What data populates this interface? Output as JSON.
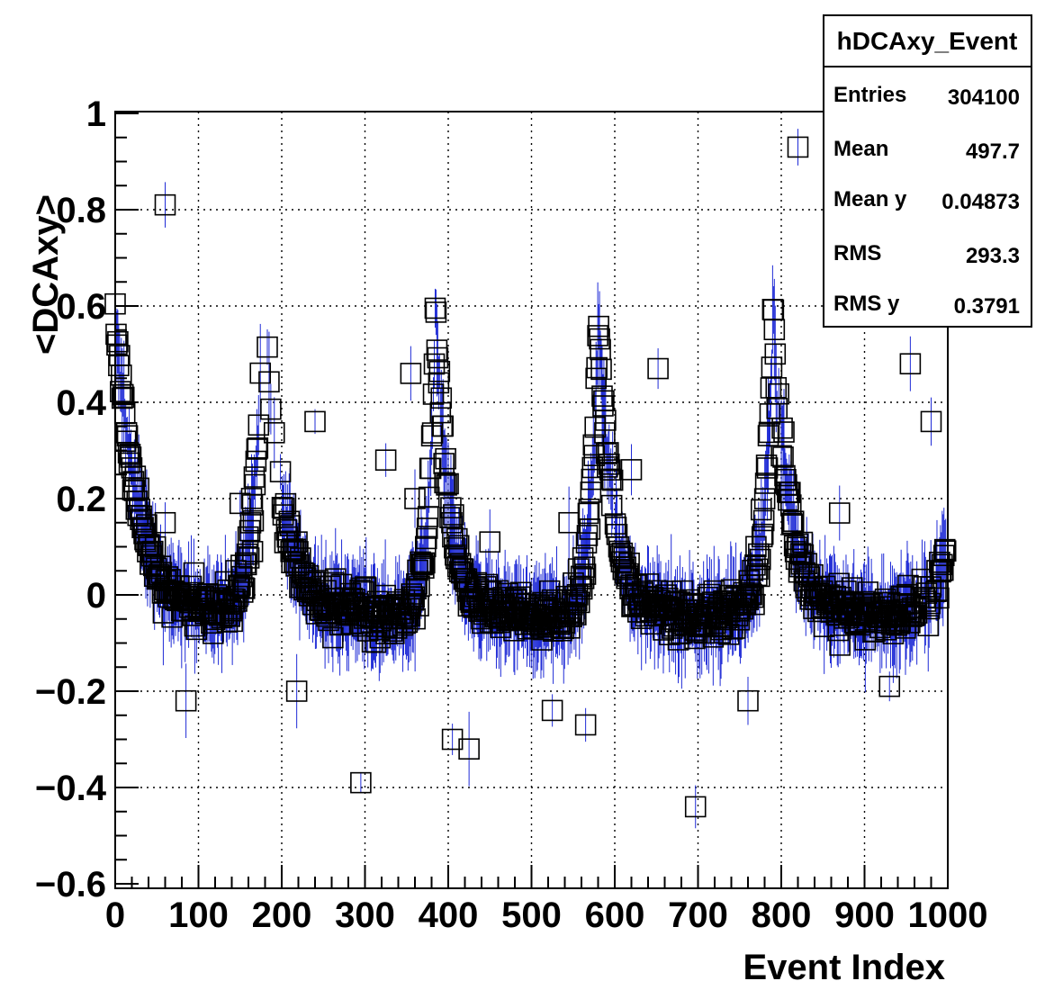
{
  "chart_data": {
    "type": "scatter",
    "title": "",
    "xlabel": "Event Index",
    "ylabel": "<DCAxy>",
    "xlim": [
      0,
      1000
    ],
    "ylim": [
      -0.6,
      1.0
    ],
    "x_ticks": [
      "0",
      "100",
      "200",
      "300",
      "400",
      "500",
      "600",
      "700",
      "800",
      "900",
      "1000"
    ],
    "y_ticks": [
      "−0.6",
      "−0.4",
      "−0.2",
      "0",
      "0.2",
      "0.4",
      "0.6",
      "0.8",
      "1"
    ],
    "grid": true,
    "marker": "open-square",
    "marker_color": "#000000",
    "errorbar_color": "#1f2bd6",
    "stats_box": {
      "title": "hDCAxy_Event",
      "rows": [
        {
          "label": "Entries",
          "value": "304100"
        },
        {
          "label": "Mean",
          "value": "497.7"
        },
        {
          "label": "Mean y",
          "value": "0.04873"
        },
        {
          "label": "RMS",
          "value": "293.3"
        },
        {
          "label": "RMS y",
          "value": "0.3791"
        }
      ],
      "placement": "top-right"
    },
    "outliers": [
      {
        "x": 60,
        "y": 0.81
      },
      {
        "x": 820,
        "y": 0.93
      },
      {
        "x": 295,
        "y": -0.39
      },
      {
        "x": 697,
        "y": -0.44
      },
      {
        "x": 405,
        "y": -0.3
      },
      {
        "x": 425,
        "y": -0.32
      },
      {
        "x": 218,
        "y": -0.2
      },
      {
        "x": 240,
        "y": 0.36
      },
      {
        "x": 652,
        "y": 0.47
      },
      {
        "x": 355,
        "y": 0.46
      },
      {
        "x": 325,
        "y": 0.28
      },
      {
        "x": 870,
        "y": 0.17
      },
      {
        "x": 60,
        "y": 0.15
      },
      {
        "x": 150,
        "y": 0.19
      },
      {
        "x": 565,
        "y": -0.27
      },
      {
        "x": 525,
        "y": -0.24
      },
      {
        "x": 760,
        "y": -0.22
      },
      {
        "x": 85,
        "y": -0.22
      },
      {
        "x": 930,
        "y": -0.19
      },
      {
        "x": 545,
        "y": 0.15
      },
      {
        "x": 450,
        "y": 0.11
      },
      {
        "x": 955,
        "y": 0.48
      },
      {
        "x": 980,
        "y": 0.36
      },
      {
        "x": 165,
        "y": 0.09
      },
      {
        "x": 620,
        "y": 0.26
      },
      {
        "x": 360,
        "y": 0.2
      }
    ]
  }
}
